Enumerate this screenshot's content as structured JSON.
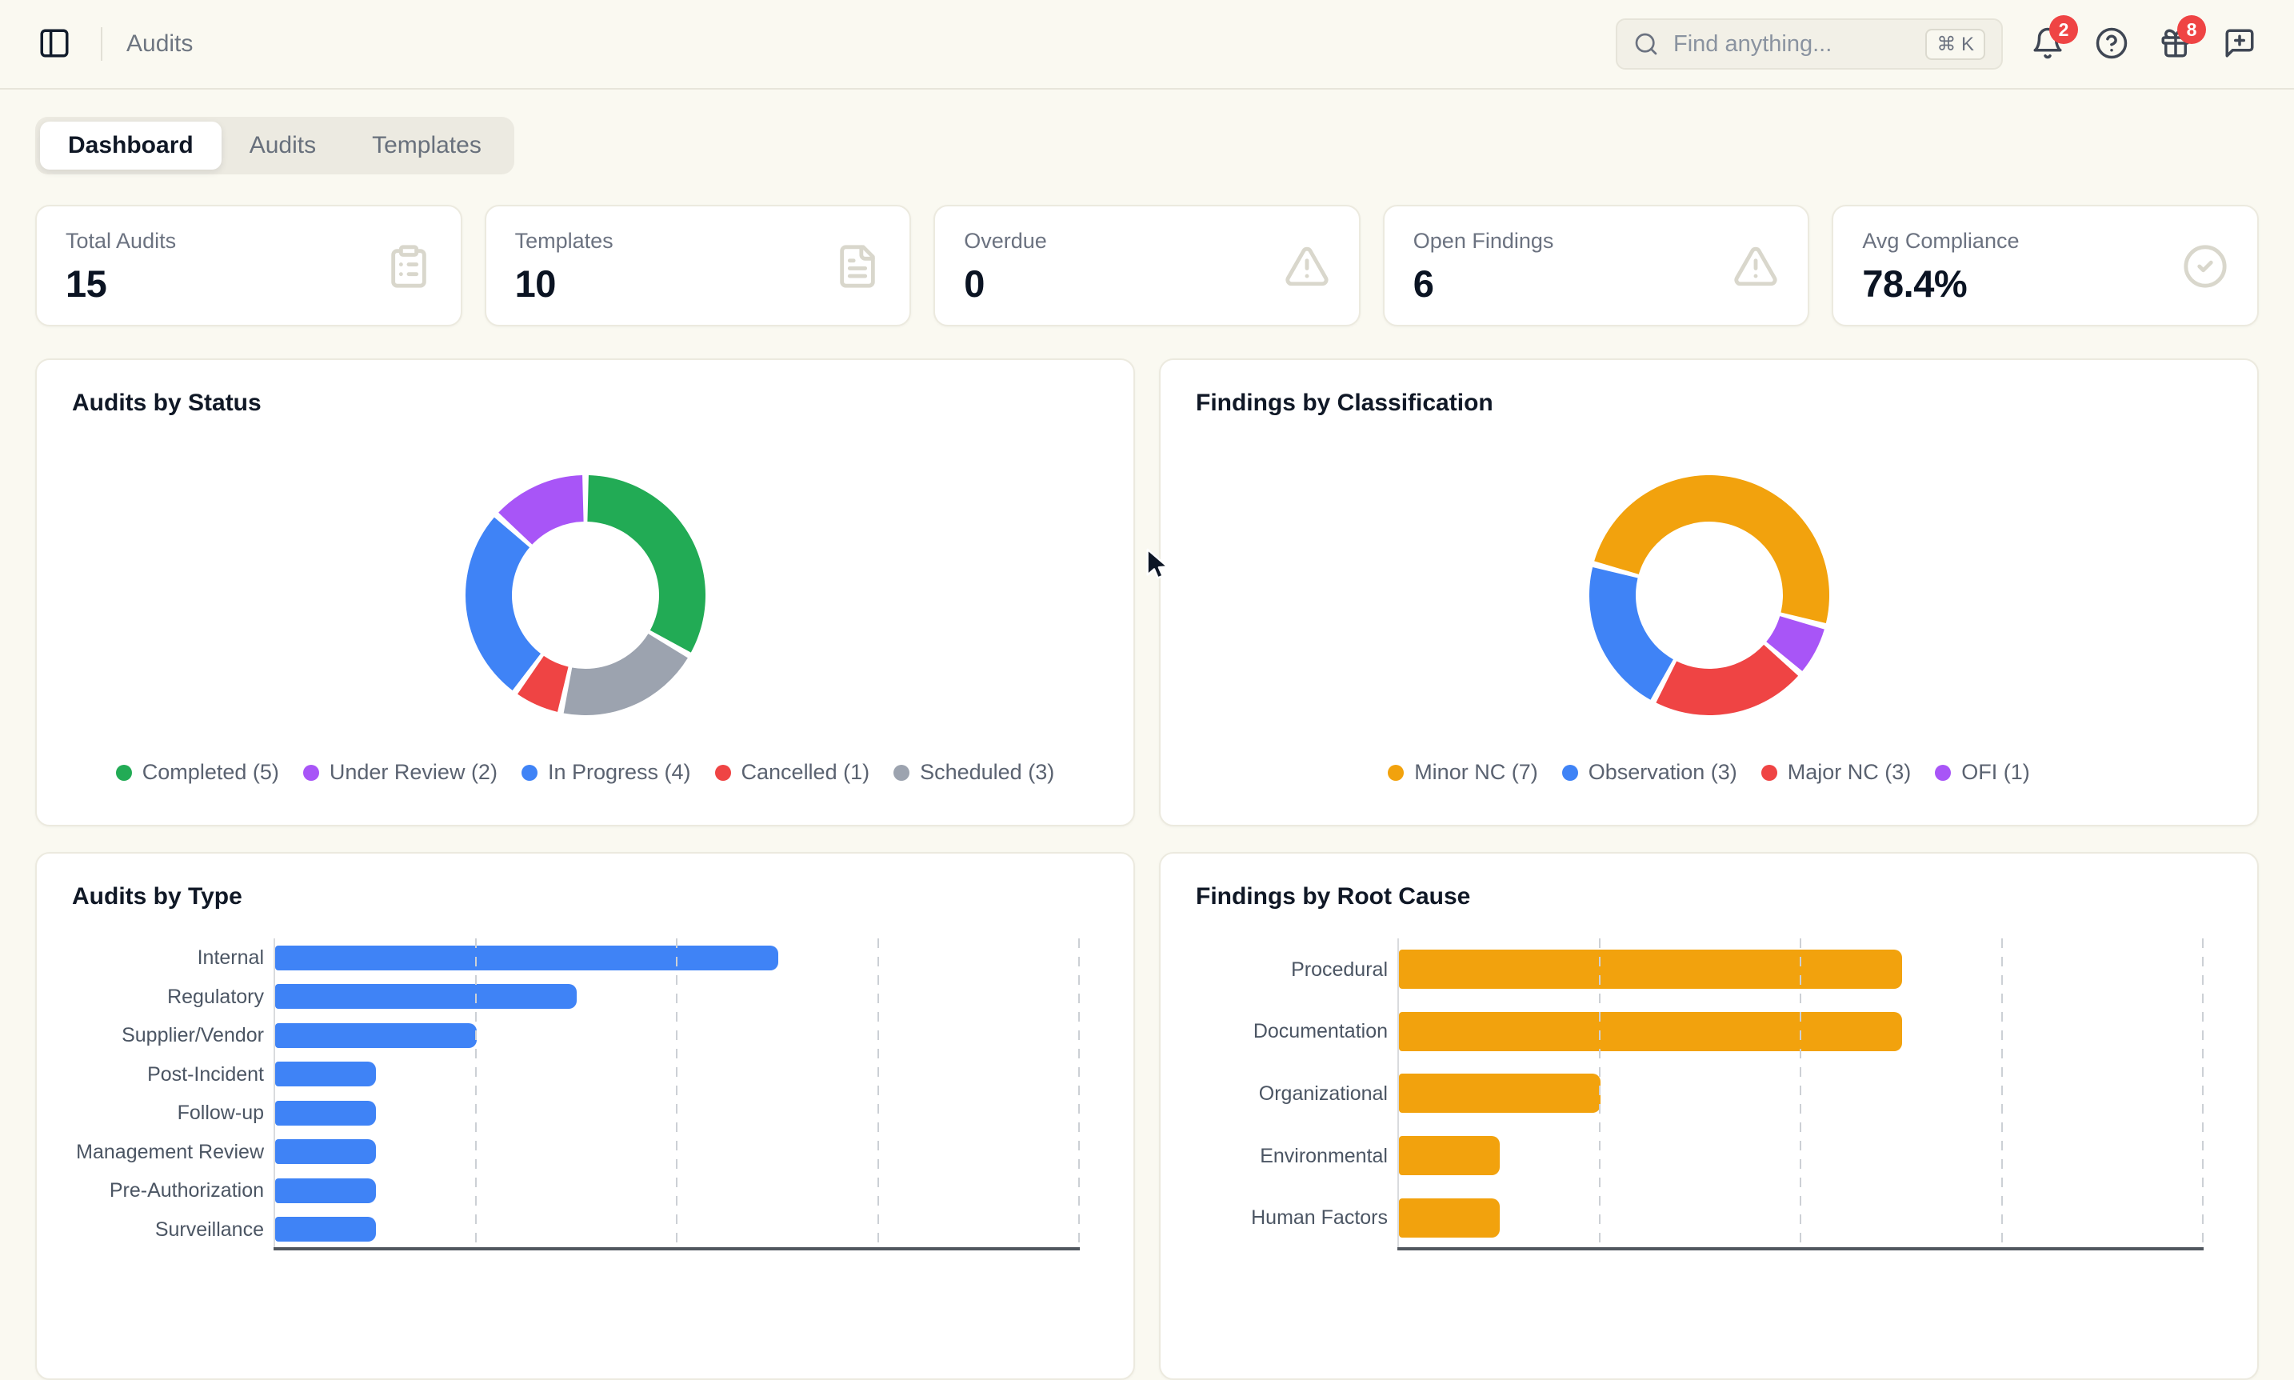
{
  "header": {
    "title": "Audits",
    "search": {
      "placeholder": "Find anything...",
      "shortcut": "⌘ K"
    },
    "notifications_badge": "2",
    "gift_badge": "8"
  },
  "colors": {
    "badge": "#ef4444",
    "bar_blue": "#3f83f6",
    "bar_orange": "#f2a20d"
  },
  "tabs": [
    {
      "label": "Dashboard",
      "active": true
    },
    {
      "label": "Audits",
      "active": false
    },
    {
      "label": "Templates",
      "active": false
    }
  ],
  "stats": [
    {
      "label": "Total Audits",
      "value": "15",
      "icon": "clipboard-list-icon"
    },
    {
      "label": "Templates",
      "value": "10",
      "icon": "file-text-icon"
    },
    {
      "label": "Overdue",
      "value": "0",
      "icon": "alert-triangle-icon"
    },
    {
      "label": "Open Findings",
      "value": "6",
      "icon": "alert-triangle-icon"
    },
    {
      "label": "Avg Compliance",
      "value": "78.4%",
      "icon": "check-circle-icon"
    }
  ],
  "chart_data": [
    {
      "type": "donut",
      "title": "Audits by Status",
      "slices": [
        {
          "label": "Completed",
          "value": 5,
          "color": "#22ab55"
        },
        {
          "label": "Under Review",
          "value": 2,
          "color": "#a855f7"
        },
        {
          "label": "In Progress",
          "value": 4,
          "color": "#3f83f6"
        },
        {
          "label": "Cancelled",
          "value": 1,
          "color": "#ef4444"
        },
        {
          "label": "Scheduled",
          "value": 3,
          "color": "#9ca3af"
        }
      ],
      "total": 15,
      "start_angle": 120,
      "direction": "counterclockwise",
      "legend_position": "bottom"
    },
    {
      "type": "donut",
      "title": "Findings by Classification",
      "slices": [
        {
          "label": "Minor NC",
          "value": 7,
          "color": "#f2a20d"
        },
        {
          "label": "Observation",
          "value": 3,
          "color": "#3f83f6"
        },
        {
          "label": "Major NC",
          "value": 3,
          "color": "#ef4444"
        },
        {
          "label": "OFI",
          "value": 1,
          "color": "#a855f7"
        }
      ],
      "total": 14,
      "start_angle": 105,
      "direction": "counterclockwise",
      "legend_position": "bottom"
    },
    {
      "type": "bar",
      "title": "Audits by Type",
      "orientation": "horizontal",
      "categories": [
        "Internal",
        "Regulatory",
        "Supplier/Vendor",
        "Post-Incident",
        "Follow-up",
        "Management Review",
        "Pre-Authorization",
        "Surveillance"
      ],
      "values": [
        5,
        3,
        2,
        1,
        1,
        1,
        1,
        1
      ],
      "bar_color": "#3f83f6",
      "xlim": [
        0,
        8
      ],
      "gridline_interval": 2,
      "x_tick_labels_visible": false
    },
    {
      "type": "bar",
      "title": "Findings by Root Cause",
      "orientation": "horizontal",
      "categories": [
        "Procedural",
        "Documentation",
        "Organizational",
        "Environmental",
        "Human Factors"
      ],
      "values": [
        5,
        5,
        2,
        1,
        1
      ],
      "bar_color": "#f2a20d",
      "xlim": [
        0,
        8
      ],
      "gridline_interval": 2,
      "x_tick_labels_visible": false
    }
  ]
}
